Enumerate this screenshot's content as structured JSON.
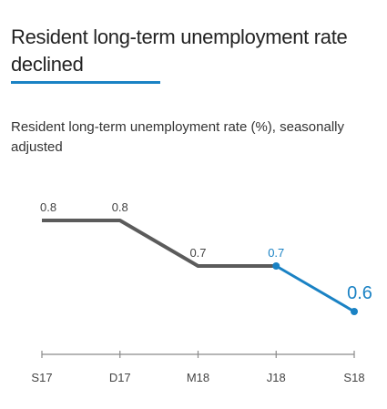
{
  "header": {
    "title": "Resident long-term unemployment rate declined"
  },
  "colors": {
    "title_rule": "#1a82c4",
    "series_main": "#5b5b5b",
    "series_highlight": "#1a82c4",
    "axis": "#8a8a8a",
    "label": "#444444"
  },
  "chart_data": {
    "type": "line",
    "title": "Resident long-term unemployment rate declined",
    "subtitle": "Resident long-term unemployment rate (%), seasonally adjusted",
    "xlabel": "",
    "ylabel": "",
    "categories": [
      "S17",
      "D17",
      "M18",
      "J18",
      "S18"
    ],
    "series": [
      {
        "values": [
          0.8,
          0.8,
          0.7,
          0.7,
          0.6
        ],
        "data_labels": [
          "0.8",
          "0.8",
          "0.7",
          "0.7",
          "0.6"
        ],
        "highlight_from_index": 3
      }
    ],
    "ylim": [
      0.5,
      0.9
    ],
    "grid": false,
    "legend": "none"
  }
}
